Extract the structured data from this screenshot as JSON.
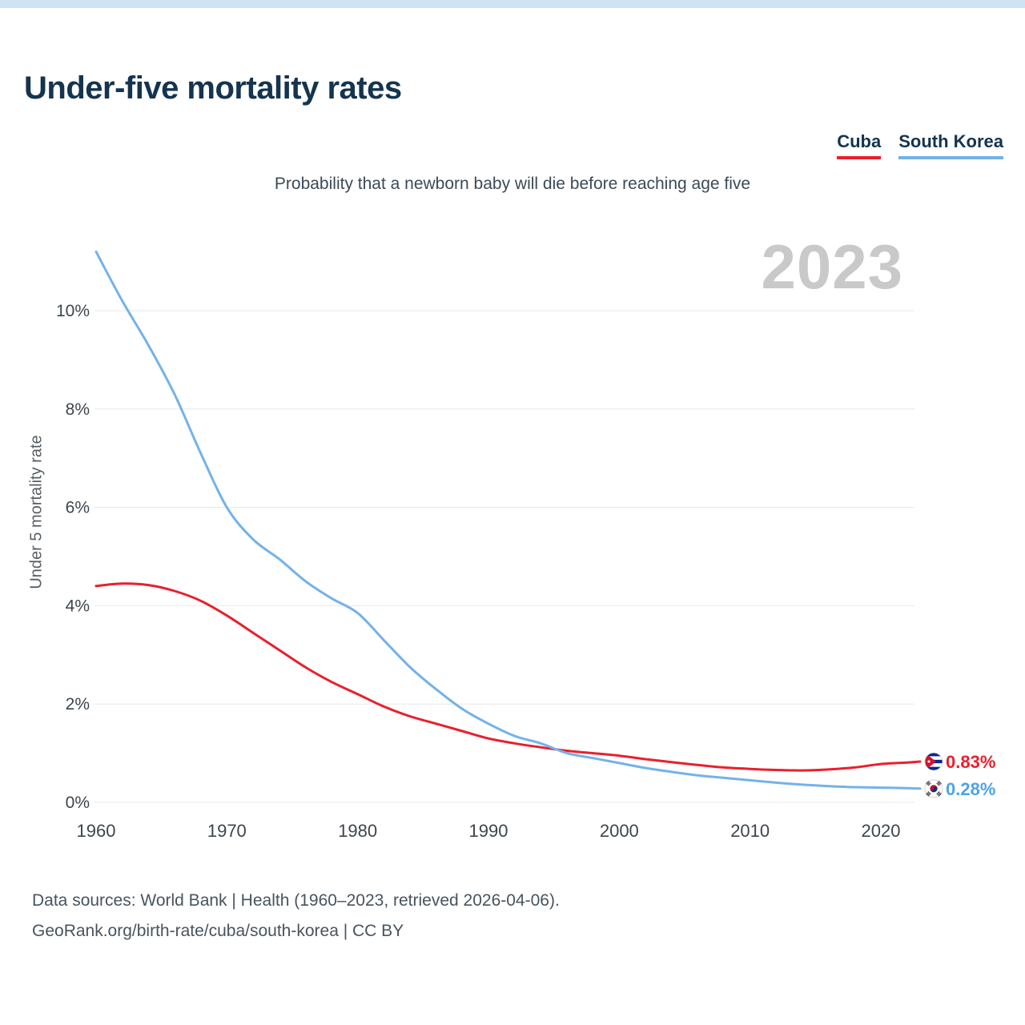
{
  "page": {
    "title": "Under-five mortality rates",
    "subtitle": "Probability that a newborn baby will die before reaching age five",
    "year_watermark": "2023",
    "y_axis_title": "Under 5 mortality rate",
    "footer_line1": "Data sources: World Bank | Health (1960–2023, retrieved 2026-04-06).",
    "footer_line2": "GeoRank.org/birth-rate/cuba/south-korea | CC BY"
  },
  "legend": {
    "items": [
      {
        "label": "Cuba",
        "color": "#e8202c"
      },
      {
        "label": "South Korea",
        "color": "#74b2e8"
      }
    ]
  },
  "end_labels": {
    "cuba": "0.83%",
    "south_korea": "0.28%"
  },
  "colors": {
    "accent_strip": "#cfe2f4",
    "title_navy": "#14344f",
    "cuba_red": "#e8202c",
    "korea_blue": "#74b2e8",
    "korea_label_blue": "#4da3e8",
    "gridline": "#e8e8e8",
    "watermark_gray": "#c9c9c9"
  },
  "chart_data": {
    "type": "line",
    "title": "Under-five mortality rates",
    "subtitle": "Probability that a newborn baby will die before reaching age five",
    "ylabel": "Under 5 mortality rate",
    "xlabel": "",
    "ylim": [
      0,
      11.5
    ],
    "xlim": [
      1960,
      2023
    ],
    "grid": "horizontal",
    "legend_position": "top-right",
    "y_ticks": [
      0,
      2,
      4,
      6,
      8,
      10
    ],
    "y_tick_labels": [
      "0%",
      "2%",
      "4%",
      "6%",
      "8%",
      "10%"
    ],
    "x_ticks": [
      1960,
      1970,
      1980,
      1990,
      2000,
      2010,
      2020
    ],
    "x": [
      1960,
      1962,
      1964,
      1966,
      1968,
      1970,
      1972,
      1974,
      1976,
      1978,
      1980,
      1982,
      1984,
      1986,
      1988,
      1990,
      1992,
      1994,
      1996,
      1998,
      2000,
      2002,
      2004,
      2006,
      2008,
      2010,
      2012,
      2014,
      2016,
      2018,
      2020,
      2022,
      2023
    ],
    "series": [
      {
        "name": "Cuba",
        "color": "#e8202c",
        "end_label": "0.83%",
        "values": [
          4.4,
          4.45,
          4.42,
          4.3,
          4.1,
          3.8,
          3.45,
          3.1,
          2.75,
          2.45,
          2.2,
          1.95,
          1.75,
          1.6,
          1.45,
          1.3,
          1.2,
          1.12,
          1.05,
          1.0,
          0.95,
          0.88,
          0.82,
          0.76,
          0.71,
          0.68,
          0.66,
          0.65,
          0.67,
          0.71,
          0.78,
          0.81,
          0.83
        ]
      },
      {
        "name": "South Korea",
        "color": "#74b2e8",
        "end_label": "0.28%",
        "values": [
          11.2,
          10.2,
          9.3,
          8.3,
          7.1,
          6.0,
          5.35,
          4.95,
          4.5,
          4.15,
          3.85,
          3.3,
          2.75,
          2.3,
          1.9,
          1.6,
          1.35,
          1.2,
          1.0,
          0.9,
          0.8,
          0.7,
          0.62,
          0.55,
          0.5,
          0.45,
          0.4,
          0.36,
          0.33,
          0.31,
          0.3,
          0.29,
          0.28
        ]
      }
    ]
  }
}
